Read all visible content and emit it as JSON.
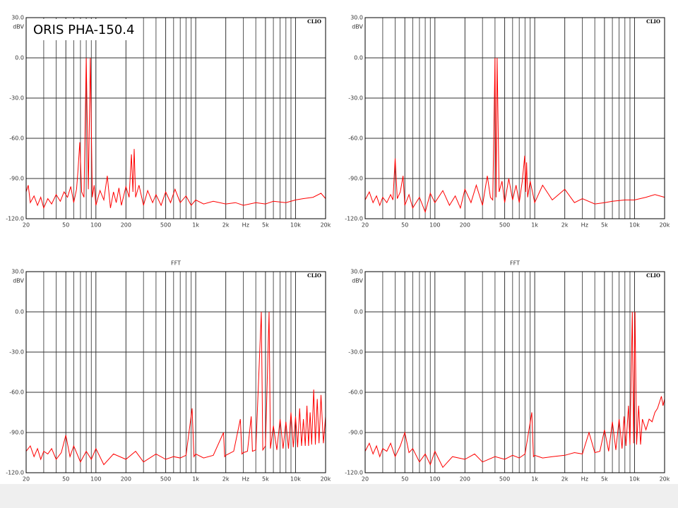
{
  "chart_data": [
    {
      "type": "line",
      "annotation": "ORIS PHA-150.4",
      "corner_label": "CLIO",
      "ylabel": "dBV",
      "xlabel": "Hz",
      "log_x": true,
      "grid": true,
      "color": "#ff0000",
      "xlim": [
        20,
        20000
      ],
      "ylim": [
        -120,
        30
      ],
      "xticks": [
        20,
        50,
        100,
        200,
        500,
        {
          "value": 1000,
          "label": "1k"
        },
        {
          "value": 2000,
          "label": "2k"
        },
        {
          "value": 5000,
          "label": "5k"
        },
        {
          "value": 10000,
          "label": "10k"
        },
        {
          "value": 20000,
          "label": "20k"
        }
      ],
      "xminorticks": [
        30,
        40,
        60,
        70,
        80,
        90,
        300,
        400,
        600,
        700,
        800,
        900,
        3000,
        4000,
        6000,
        7000,
        8000,
        9000
      ],
      "yticks": [
        {
          "value": 30,
          "label": "30.0"
        },
        {
          "value": 0,
          "label": "0.0"
        },
        {
          "value": -30,
          "label": "-30.0"
        },
        {
          "value": -60,
          "label": "-60.0"
        },
        {
          "value": -90,
          "label": "-90.0"
        },
        {
          "value": -120,
          "label": "-120.0"
        }
      ],
      "x": [
        20,
        21,
        22,
        24,
        26,
        28,
        30,
        33,
        36,
        40,
        44,
        48,
        52,
        56,
        60,
        64,
        66,
        69,
        72,
        76,
        80,
        84,
        88,
        92,
        96,
        100,
        110,
        120,
        130,
        140,
        150,
        160,
        170,
        180,
        200,
        215,
        227,
        235,
        242,
        250,
        270,
        300,
        330,
        370,
        400,
        450,
        500,
        560,
        620,
        700,
        800,
        900,
        1000,
        1200,
        1500,
        2000,
        2500,
        3000,
        4000,
        5000,
        6000,
        8000,
        10000,
        12000,
        15000,
        18000,
        20000
      ],
      "values": [
        -100,
        -95,
        -108,
        -103,
        -110,
        -104,
        -112,
        -105,
        -109,
        -102,
        -107,
        -100,
        -104,
        -96,
        -108,
        -98,
        -85,
        -63,
        -100,
        -104,
        0,
        -98,
        0,
        -104,
        -95,
        -110,
        -99,
        -106,
        -88,
        -112,
        -100,
        -108,
        -97,
        -110,
        -96,
        -104,
        -72,
        -100,
        -68,
        -104,
        -95,
        -110,
        -99,
        -108,
        -102,
        -110,
        -100,
        -108,
        -98,
        -108,
        -103,
        -110,
        -106,
        -109,
        -107,
        -109,
        -108,
        -110,
        -108,
        -109,
        -107,
        -108,
        -106,
        -105,
        -104,
        -101,
        -105
      ]
    },
    {
      "type": "line",
      "corner_label": "CLIO",
      "ylabel": "dBV",
      "xlabel": "Hz",
      "log_x": true,
      "grid": true,
      "color": "#ff0000",
      "xlim": [
        20,
        20000
      ],
      "ylim": [
        -120,
        30
      ],
      "xticks": [
        20,
        50,
        100,
        200,
        500,
        {
          "value": 1000,
          "label": "1k"
        },
        {
          "value": 2000,
          "label": "2k"
        },
        {
          "value": 5000,
          "label": "5k"
        },
        {
          "value": 10000,
          "label": "10k"
        },
        {
          "value": 20000,
          "label": "20k"
        }
      ],
      "xminorticks": [
        30,
        40,
        60,
        70,
        80,
        90,
        300,
        400,
        600,
        700,
        800,
        900,
        3000,
        4000,
        6000,
        7000,
        8000,
        9000
      ],
      "yticks": [
        {
          "value": 30,
          "label": "30.0"
        },
        {
          "value": 0,
          "label": "0.0"
        },
        {
          "value": -30,
          "label": "-30.0"
        },
        {
          "value": -60,
          "label": "-60.0"
        },
        {
          "value": -90,
          "label": "-90.0"
        },
        {
          "value": -120,
          "label": "-120.0"
        }
      ],
      "x": [
        20,
        22,
        24,
        26,
        28,
        30,
        33,
        36,
        38,
        40,
        42,
        45,
        48,
        50,
        55,
        60,
        70,
        80,
        90,
        100,
        120,
        140,
        160,
        180,
        200,
        230,
        260,
        300,
        335,
        360,
        380,
        400,
        410,
        420,
        440,
        470,
        500,
        550,
        600,
        650,
        700,
        750,
        794,
        810,
        829,
        850,
        900,
        1000,
        1200,
        1500,
        2000,
        2500,
        3000,
        4000,
        5000,
        6000,
        8000,
        10000,
        13000,
        16000,
        20000
      ],
      "values": [
        -106,
        -100,
        -108,
        -103,
        -110,
        -104,
        -108,
        -102,
        -106,
        -75,
        -105,
        -100,
        -88,
        -110,
        -102,
        -112,
        -104,
        -115,
        -101,
        -108,
        -99,
        -110,
        -103,
        -112,
        -98,
        -108,
        -95,
        -110,
        -88,
        -104,
        -106,
        0,
        -104,
        0,
        -100,
        -92,
        -108,
        -90,
        -106,
        -95,
        -108,
        -92,
        -73,
        -100,
        -78,
        -104,
        -92,
        -108,
        -95,
        -106,
        -98,
        -108,
        -105,
        -109,
        -108,
        -107,
        -106,
        -106,
        -104,
        -102,
        -104
      ]
    },
    {
      "type": "line",
      "title": "FFT",
      "corner_label": "CLIO",
      "ylabel": "dBV",
      "xlabel": "Hz",
      "log_x": true,
      "grid": true,
      "color": "#ff0000",
      "xlim": [
        20,
        20000
      ],
      "ylim": [
        -120,
        30
      ],
      "xticks": [
        20,
        50,
        100,
        200,
        500,
        {
          "value": 1000,
          "label": "1k"
        },
        {
          "value": 2000,
          "label": "2k"
        },
        {
          "value": 5000,
          "label": "5k"
        },
        {
          "value": 10000,
          "label": "10k"
        },
        {
          "value": 20000,
          "label": "20k"
        }
      ],
      "xminorticks": [
        30,
        40,
        60,
        70,
        80,
        90,
        300,
        400,
        600,
        700,
        800,
        900,
        3000,
        4000,
        6000,
        7000,
        8000,
        9000
      ],
      "yticks": [
        {
          "value": 30,
          "label": "30.0"
        },
        {
          "value": 0,
          "label": "0.0"
        },
        {
          "value": -30,
          "label": "-30.0"
        },
        {
          "value": -60,
          "label": "-60.0"
        },
        {
          "value": -90,
          "label": "-90.0"
        },
        {
          "value": -120,
          "label": "-120.0"
        }
      ],
      "x": [
        20,
        22,
        24,
        26,
        28,
        30,
        33,
        36,
        40,
        45,
        50,
        55,
        60,
        70,
        80,
        90,
        100,
        120,
        150,
        200,
        250,
        300,
        400,
        500,
        600,
        700,
        800,
        920,
        960,
        1000,
        1200,
        1500,
        1900,
        1950,
        2000,
        2400,
        2800,
        2900,
        3000,
        3300,
        3600,
        3700,
        4000,
        4540,
        4700,
        5000,
        5430,
        5600,
        6000,
        6500,
        7000,
        7500,
        8000,
        8500,
        9000,
        9500,
        10000,
        10500,
        11000,
        11500,
        12000,
        12500,
        13000,
        13500,
        14000,
        14500,
        15200,
        15800,
        16500,
        17200,
        18000,
        19000,
        20000
      ],
      "values": [
        -104,
        -100,
        -108,
        -102,
        -110,
        -104,
        -106,
        -102,
        -110,
        -105,
        -92,
        -108,
        -100,
        -112,
        -104,
        -110,
        -102,
        -114,
        -106,
        -110,
        -104,
        -112,
        -106,
        -110,
        -108,
        -109,
        -107,
        -72,
        -108,
        -106,
        -109,
        -107,
        -90,
        -108,
        -107,
        -104,
        -80,
        -106,
        -105,
        -104,
        -78,
        -104,
        -103,
        0,
        -103,
        -100,
        0,
        -102,
        -85,
        -103,
        -80,
        -102,
        -82,
        -102,
        -75,
        -101,
        -78,
        -101,
        -72,
        -100,
        -80,
        -100,
        -70,
        -100,
        -75,
        -99,
        -58,
        -99,
        -65,
        -98,
        -62,
        -98,
        -78
      ]
    },
    {
      "type": "line",
      "title": "FFT",
      "corner_label": "CLIO",
      "ylabel": "dBV",
      "xlabel": "Hz",
      "log_x": true,
      "grid": true,
      "color": "#ff0000",
      "xlim": [
        20,
        20000
      ],
      "ylim": [
        -120,
        30
      ],
      "xticks": [
        20,
        50,
        100,
        200,
        500,
        {
          "value": 1000,
          "label": "1k"
        },
        {
          "value": 2000,
          "label": "2k"
        },
        {
          "value": 5000,
          "label": "5k"
        },
        {
          "value": 10000,
          "label": "10k"
        },
        {
          "value": 20000,
          "label": "20k"
        }
      ],
      "xminorticks": [
        30,
        40,
        60,
        70,
        80,
        90,
        300,
        400,
        600,
        700,
        800,
        900,
        3000,
        4000,
        6000,
        7000,
        8000,
        9000
      ],
      "yticks": [
        {
          "value": 30,
          "label": "30.0"
        },
        {
          "value": 0,
          "label": "0.0"
        },
        {
          "value": -30,
          "label": "-30.0"
        },
        {
          "value": -60,
          "label": "-60.0"
        },
        {
          "value": -90,
          "label": "-90.0"
        },
        {
          "value": -120,
          "label": "-120.0"
        }
      ],
      "x": [
        20,
        22,
        24,
        26,
        28,
        30,
        33,
        36,
        40,
        45,
        50,
        55,
        60,
        70,
        80,
        90,
        100,
        120,
        150,
        200,
        250,
        300,
        400,
        500,
        600,
        700,
        800,
        935,
        970,
        1000,
        1200,
        1500,
        2000,
        2500,
        3000,
        3500,
        4000,
        4500,
        5000,
        5500,
        6000,
        6500,
        7000,
        7500,
        7850,
        8200,
        8700,
        9000,
        9500,
        9800,
        10100,
        10500,
        11000,
        11500,
        12000,
        13000,
        14000,
        15000,
        16000,
        17000,
        18600,
        19300,
        20000
      ],
      "values": [
        -104,
        -98,
        -106,
        -100,
        -108,
        -102,
        -104,
        -98,
        -108,
        -100,
        -90,
        -105,
        -102,
        -112,
        -106,
        -114,
        -104,
        -116,
        -108,
        -110,
        -106,
        -112,
        -108,
        -110,
        -107,
        -109,
        -106,
        -75,
        -108,
        -107,
        -109,
        -108,
        -107,
        -105,
        -106,
        -90,
        -105,
        -104,
        -88,
        -104,
        -82,
        -103,
        -80,
        -102,
        -78,
        -100,
        -70,
        -99,
        0,
        -98,
        0,
        -99,
        -70,
        -99,
        -80,
        -88,
        -80,
        -82,
        -75,
        -72,
        -63,
        -70,
        -65
      ]
    }
  ]
}
